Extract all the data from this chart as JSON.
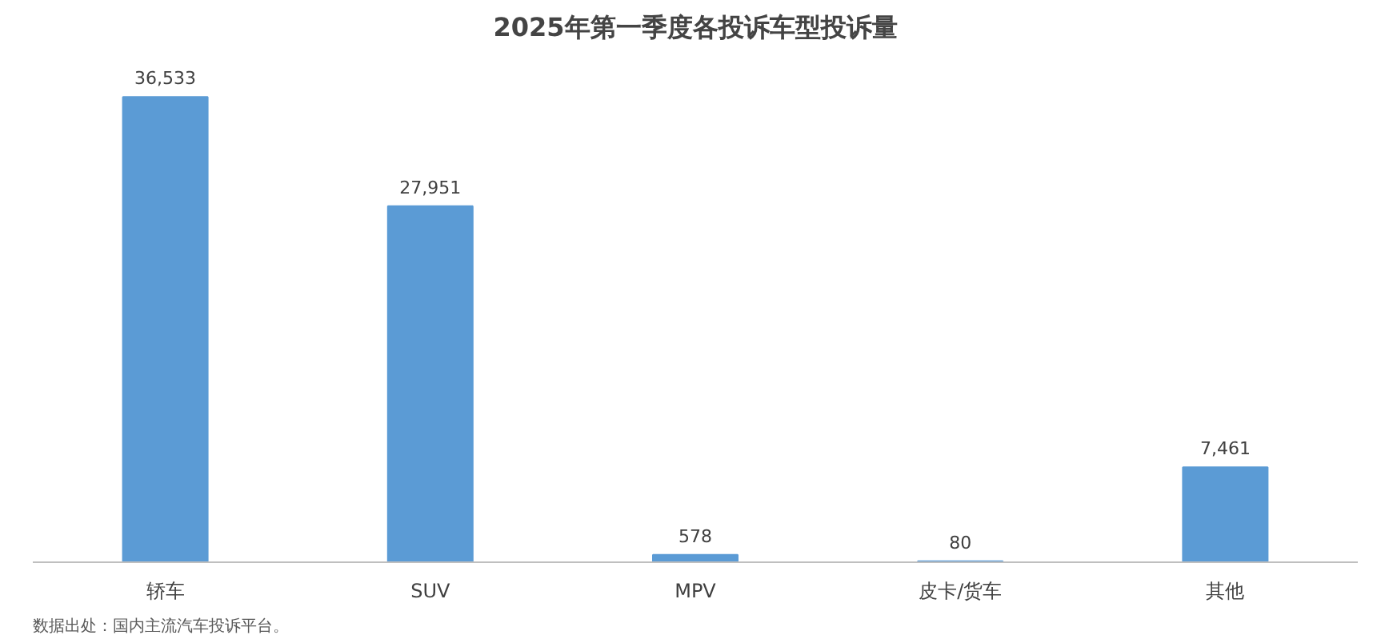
{
  "chart_data": {
    "type": "bar",
    "title": "2025年第一季度各投诉车型投诉量",
    "categories": [
      "轿车",
      "SUV",
      "MPV",
      "皮卡/货车",
      "其他"
    ],
    "values": [
      36533,
      27951,
      578,
      80,
      7461
    ],
    "value_labels": [
      "36,533",
      "27,951",
      "578",
      "80",
      "7,461"
    ],
    "color": "#5b9bd5",
    "grid": false,
    "annotations": [
      "数据出处：国内主流汽车投诉平台。"
    ]
  }
}
